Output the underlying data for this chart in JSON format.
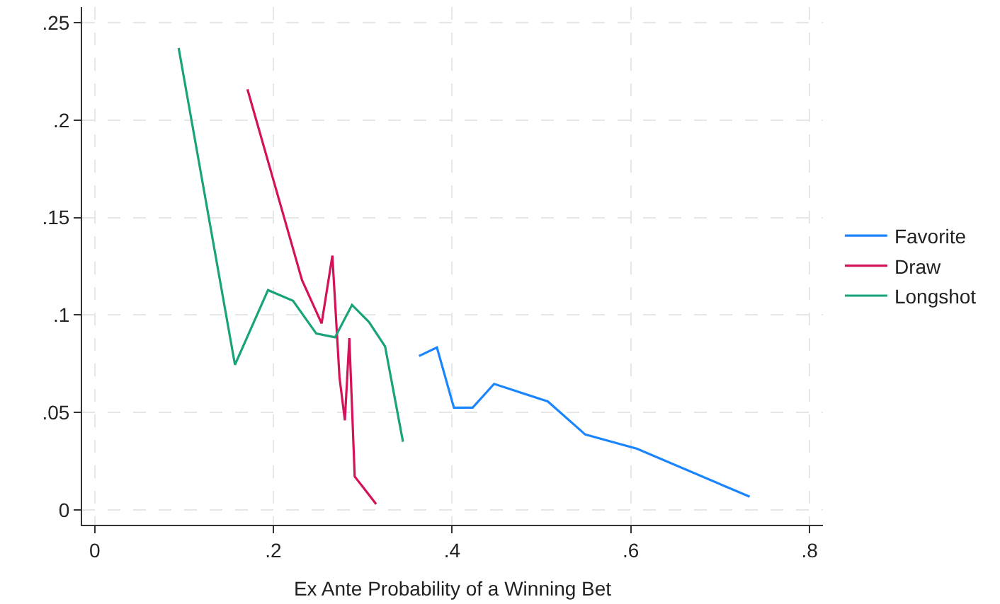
{
  "chart_data": {
    "type": "line",
    "xlabel": "Ex Ante Probability of a Winning Bet",
    "xlim": [
      -0.014,
      0.815
    ],
    "ylim": [
      -0.0076,
      0.258
    ],
    "xticks": [
      0,
      {
        "value": 0.2,
        "label": ".2"
      },
      {
        "value": 0.4,
        "label": ".4"
      },
      {
        "value": 0.6,
        "label": ".6"
      },
      {
        "value": 0.8,
        "label": ".8"
      }
    ],
    "yticks": [
      0,
      {
        "value": 0.05,
        "label": ".05"
      },
      {
        "value": 0.1,
        "label": ".1"
      },
      {
        "value": 0.15,
        "label": ".15"
      },
      {
        "value": 0.2,
        "label": ".2"
      },
      {
        "value": 0.25,
        "label": ".25"
      }
    ],
    "grid": true,
    "legend": "right",
    "line_style": "solid",
    "marker": "none",
    "series": [
      {
        "name": "Favorite",
        "color": "#1a85ff",
        "x": [
          0.363,
          0.383,
          0.402,
          0.423,
          0.447,
          0.507,
          0.549,
          0.607,
          0.733
        ],
        "values": [
          0.079,
          0.0834,
          0.0525,
          0.0525,
          0.0647,
          0.0557,
          0.0387,
          0.0314,
          0.0068
        ]
      },
      {
        "name": "Draw",
        "color": "#d41159",
        "x": [
          0.171,
          0.232,
          0.254,
          0.266,
          0.274,
          0.28,
          0.285,
          0.291,
          0.315
        ],
        "values": [
          0.2158,
          0.118,
          0.0957,
          0.1305,
          0.068,
          0.046,
          0.0882,
          0.0172,
          0.003
        ]
      },
      {
        "name": "Longshot",
        "color": "#1aa37a",
        "x": [
          0.094,
          0.157,
          0.194,
          0.222,
          0.248,
          0.269,
          0.288,
          0.307,
          0.325,
          0.345
        ],
        "values": [
          0.237,
          0.0745,
          0.1128,
          0.1073,
          0.0905,
          0.0886,
          0.1052,
          0.0964,
          0.0839,
          0.035
        ]
      }
    ]
  }
}
